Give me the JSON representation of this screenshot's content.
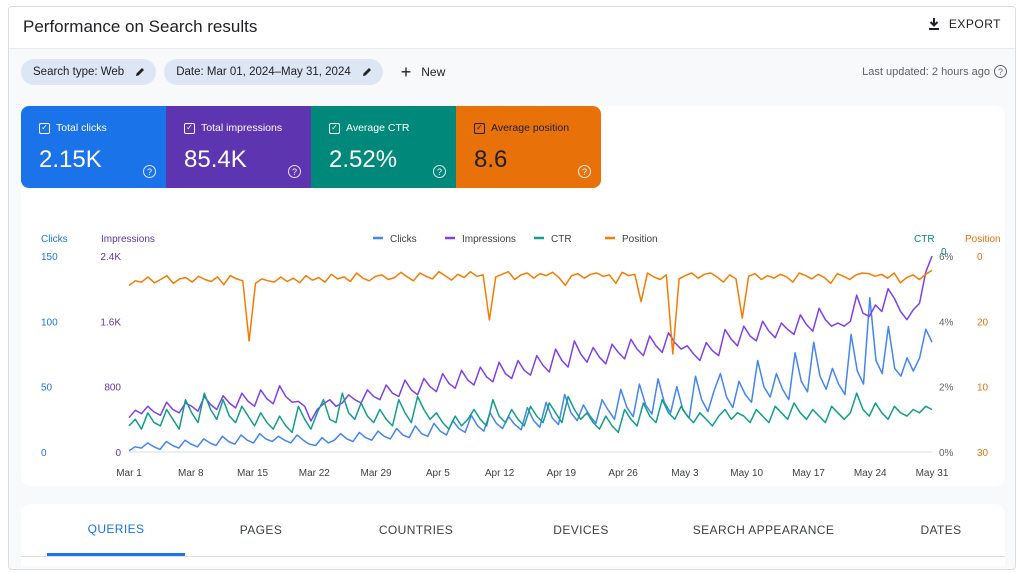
{
  "header": {
    "title": "Performance on Search results",
    "export_label": "EXPORT"
  },
  "filters": {
    "search_type": "Search type: Web",
    "date_range": "Date: Mar 01, 2024–May 31, 2024",
    "new_label": "New",
    "last_updated": "Last updated: 2 hours ago"
  },
  "metrics": [
    {
      "label": "Total clicks",
      "value": "2.15K",
      "color": "#1a73e8"
    },
    {
      "label": "Total impressions",
      "value": "85.4K",
      "color": "#5e35b1"
    },
    {
      "label": "Average CTR",
      "value": "2.52%",
      "color": "#00897b"
    },
    {
      "label": "Average position",
      "value": "8.6",
      "color": "#e8710a"
    }
  ],
  "chart_data": {
    "type": "line",
    "legend": [
      "Clicks",
      "Impressions",
      "CTR",
      "Position"
    ],
    "axis_titles": {
      "left_outer": "Clicks",
      "left_inner": "Impressions",
      "right_inner": "CTR",
      "right_outer": "Position"
    },
    "clicks_ticks": [
      "150",
      "100",
      "50",
      "0"
    ],
    "impressions_ticks": [
      "2.4K",
      "1.6K",
      "800",
      "0"
    ],
    "ctr_ticks": [
      "6%",
      "4%",
      "2%",
      "0%"
    ],
    "position_ticks": [
      "0",
      "20",
      "10",
      "30"
    ],
    "ctr_top_extra": "0",
    "x_labels": [
      "Mar 1",
      "Mar 8",
      "Mar 15",
      "Mar 22",
      "Mar 29",
      "Apr 5",
      "Apr 12",
      "Apr 19",
      "Apr 26",
      "May 3",
      "May 10",
      "May 17",
      "May 24",
      "May 31"
    ],
    "ranges": {
      "clicks": [
        0,
        150
      ],
      "impressions": [
        0,
        2400
      ],
      "ctr": [
        0,
        6
      ],
      "position": [
        0,
        30
      ]
    },
    "position_reversed": true,
    "colors": {
      "Clicks": "#4285f4",
      "Impressions": "#7e3ff2",
      "CTR": "#129e8a",
      "Position": "#f57c00"
    },
    "series": [
      {
        "name": "Clicks",
        "values": [
          1,
          4,
          3,
          7,
          4,
          2,
          8,
          5,
          3,
          9,
          6,
          4,
          10,
          7,
          5,
          12,
          8,
          6,
          13,
          9,
          7,
          14,
          10,
          8,
          12,
          9,
          7,
          13,
          9,
          6,
          5,
          11,
          7,
          9,
          14,
          10,
          8,
          15,
          11,
          9,
          16,
          12,
          10,
          18,
          13,
          11,
          20,
          14,
          12,
          22,
          16,
          13,
          24,
          18,
          15,
          28,
          20,
          16,
          30,
          22,
          18,
          27,
          21,
          17,
          34,
          24,
          19,
          38,
          26,
          21,
          44,
          30,
          24,
          36,
          28,
          22,
          40,
          32,
          25,
          48,
          34,
          27,
          52,
          36,
          29,
          56,
          38,
          30,
          50,
          32,
          26,
          58,
          40,
          31,
          47,
          60,
          42,
          34,
          54,
          44,
          38,
          70,
          50,
          42,
          60,
          48,
          40,
          76,
          54,
          46,
          84,
          58,
          48,
          64,
          52,
          44,
          90,
          62,
          52,
          118,
          70,
          60,
          96,
          64,
          58,
          72,
          62,
          72,
          94,
          84
        ]
      },
      {
        "name": "Impressions",
        "values": [
          420,
          510,
          470,
          560,
          490,
          450,
          610,
          520,
          480,
          600,
          560,
          500,
          680,
          580,
          520,
          690,
          600,
          540,
          720,
          620,
          560,
          760,
          650,
          590,
          810,
          680,
          610,
          620,
          560,
          380,
          520,
          590,
          640,
          560,
          600,
          700,
          640,
          600,
          760,
          680,
          640,
          820,
          720,
          680,
          880,
          760,
          700,
          900,
          800,
          740,
          960,
          840,
          780,
          1000,
          880,
          820,
          1040,
          920,
          860,
          1100,
          960,
          900,
          1120,
          1000,
          940,
          1180,
          1060,
          980,
          1260,
          1120,
          1040,
          1360,
          1200,
          1100,
          1280,
          1160,
          1080,
          1320,
          1220,
          1140,
          1380,
          1260,
          1180,
          1420,
          1300,
          1220,
          1460,
          1340,
          1260,
          1300,
          1200,
          1120,
          1340,
          1240,
          1180,
          1500,
          1380,
          1300,
          1540,
          1420,
          1360,
          1600,
          1480,
          1400,
          1580,
          1500,
          1440,
          1680,
          1560,
          1480,
          1760,
          1620,
          1540,
          1580,
          1540,
          1600,
          1920,
          1700,
          1660,
          1800,
          1720,
          2000,
          1880,
          1720,
          1620,
          1740,
          1820,
          2200,
          2400
        ]
      },
      {
        "name": "CTR",
        "values": [
          0.8,
          1.0,
          0.7,
          1.2,
          0.9,
          0.8,
          1.3,
          1.0,
          0.7,
          1.6,
          1.2,
          0.9,
          1.8,
          1.3,
          1.0,
          1.6,
          1.1,
          0.9,
          1.4,
          1.1,
          0.8,
          1.2,
          0.9,
          0.7,
          1.1,
          0.8,
          0.6,
          1.4,
          1.0,
          0.7,
          1.2,
          1.6,
          1.0,
          0.9,
          1.8,
          1.2,
          1.0,
          1.5,
          1.1,
          0.9,
          1.3,
          1.0,
          0.8,
          1.6,
          1.2,
          0.9,
          1.7,
          1.3,
          1.0,
          1.2,
          0.9,
          0.7,
          1.1,
          0.8,
          1.0,
          1.3,
          1.0,
          0.8,
          1.6,
          1.1,
          0.9,
          1.3,
          1.0,
          0.8,
          1.4,
          1.1,
          0.9,
          1.5,
          1.2,
          0.9,
          1.7,
          1.3,
          1.0,
          1.2,
          0.9,
          0.7,
          1.1,
          0.8,
          0.6,
          1.3,
          1.0,
          0.8,
          1.5,
          1.1,
          0.9,
          1.6,
          1.2,
          1.0,
          1.4,
          1.1,
          0.9,
          1.2,
          1.0,
          0.8,
          1.1,
          1.3,
          1.0,
          1.2,
          1.1,
          0.9,
          1.3,
          1.1,
          0.9,
          1.4,
          1.2,
          1.0,
          1.5,
          1.2,
          1.0,
          1.3,
          1.1,
          0.9,
          1.4,
          1.2,
          1.0,
          1.2,
          1.8,
          1.3,
          1.1,
          1.5,
          1.2,
          1.0,
          1.4,
          1.2,
          1.1,
          1.3,
          1.2,
          1.4,
          1.3
        ]
      },
      {
        "name": "Position",
        "values": [
          4.5,
          3.8,
          4.0,
          3.2,
          4.1,
          3.6,
          3.0,
          4.2,
          3.5,
          3.3,
          4.0,
          3.1,
          3.6,
          3.9,
          3.2,
          4.4,
          3.0,
          3.5,
          3.8,
          13.0,
          4.2,
          3.5,
          3.8,
          4.0,
          3.2,
          3.9,
          3.4,
          4.1,
          3.0,
          3.7,
          3.3,
          4.0,
          2.8,
          3.5,
          3.2,
          3.9,
          2.6,
          3.4,
          3.8,
          3.1,
          2.9,
          3.6,
          3.3,
          2.5,
          3.2,
          3.8,
          2.6,
          3.1,
          3.5,
          2.4,
          3.0,
          3.7,
          2.8,
          3.3,
          2.4,
          3.1,
          2.9,
          9.8,
          3.2,
          2.8,
          2.4,
          3.6,
          2.9,
          2.6,
          3.4,
          2.7,
          3.0,
          2.5,
          3.3,
          4.5,
          3.0,
          2.7,
          3.4,
          2.8,
          2.6,
          3.1,
          2.9,
          4.2,
          2.5,
          3.0,
          2.8,
          7.0,
          2.6,
          3.2,
          3.6,
          2.9,
          15.0,
          3.5,
          3.0,
          2.6,
          3.4,
          2.8,
          2.6,
          3.2,
          4.0,
          2.9,
          3.5,
          9.5,
          3.1,
          2.7,
          3.6,
          3.0,
          3.4,
          2.8,
          3.2,
          4.0,
          2.6,
          3.0,
          3.5,
          2.8,
          3.3,
          4.2,
          2.7,
          3.1,
          3.6,
          2.9,
          2.6,
          2.7,
          3.1,
          2.8,
          3.4,
          2.6,
          4.1,
          3.3,
          2.9,
          3.6,
          2.8,
          2.2
        ]
      }
    ]
  },
  "tabs": [
    {
      "label": "QUERIES",
      "active": true
    },
    {
      "label": "PAGES",
      "active": false
    },
    {
      "label": "COUNTRIES",
      "active": false
    },
    {
      "label": "DEVICES",
      "active": false
    },
    {
      "label": "SEARCH APPEARANCE",
      "active": false
    },
    {
      "label": "DATES",
      "active": false
    }
  ]
}
